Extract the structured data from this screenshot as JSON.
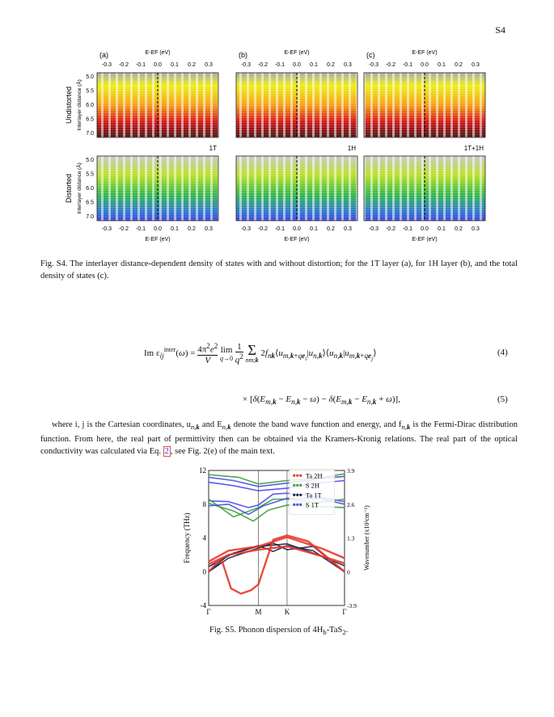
{
  "page_number": "S4",
  "dos_figure": {
    "panel_labels": [
      "(a)",
      "(b)",
      "(c)"
    ],
    "xlabel": "E-E",
    "xlabel_sub": "F",
    "xlabel_unit": "(eV)",
    "x_ticks": [
      "-0.3",
      "-0.2",
      "-0.1",
      "0.0",
      "0.1",
      "0.2",
      "0.3"
    ],
    "y_ticks": [
      "5.0",
      "5.5",
      "6.0",
      "6.5",
      "7.0"
    ],
    "ylabel": "Interlayer distance (Å)",
    "row_labels": [
      "Undistorted",
      "Distorted"
    ],
    "panel_tags": [
      "1T",
      "1H",
      "1T+1H"
    ]
  },
  "fig_s4_caption": "Fig. S4. The interlayer distance-dependent density of states with and without distortion; for the 1T layer (a), for 1H layer (b), and the total density of states (c).",
  "equation": {
    "line1_lhs": "Im ε",
    "line1_num": "(4)",
    "line2_num": "(5)"
  },
  "paragraph": {
    "text_a": "where i, j is the Cartesian coordinates, u",
    "text_b": " and E",
    "text_c": " denote the band wave function and energy, and f",
    "text_d": " is the Fermi-Dirac distribution function. From here, the real part of permittivity then can be obtained via the Kramers-Kronig relations. The real part of the optical conductivity was calculated via Eq. ",
    "eq_ref": "2",
    "text_e": ", see Fig. 2(e) of the main text."
  },
  "chart_data": {
    "type": "scatter",
    "title": "",
    "xlabel": "",
    "ylabel": "Frequency (THz)",
    "y2label": "Wavenumber (x10²cm⁻¹)",
    "x_ticks": [
      "Γ",
      "M",
      "K",
      "Γ"
    ],
    "x": [
      0,
      1,
      1.577,
      2.732
    ],
    "ylim": [
      -4,
      12
    ],
    "y_ticks": [
      -4,
      0,
      4,
      8,
      12
    ],
    "y2_ticks": [
      "-3.9",
      "0",
      "1.3",
      "2.6",
      "3.9"
    ],
    "legend_position": "top-right",
    "series": [
      {
        "name": "Ta 2H",
        "color": "#e8392a"
      },
      {
        "name": "S 2H",
        "color": "#3aa03a"
      },
      {
        "name": "Ta 1T",
        "color": "#1f1f4a"
      },
      {
        "name": "S 1T",
        "color": "#4a4ae8"
      }
    ]
  },
  "fig_s5_caption": "Fig. S5. Phonon dispersion of 4H",
  "fig_s5_sub": "b",
  "fig_s5_tail": "-TaS",
  "fig_s5_sub2": "2",
  "fig_s5_end": "."
}
